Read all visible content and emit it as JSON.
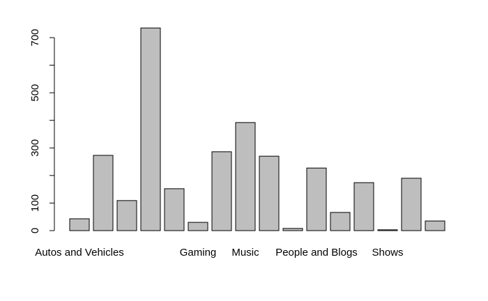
{
  "chart_data": {
    "type": "bar",
    "categories": [
      "Autos and Vehicles",
      null,
      null,
      null,
      null,
      "Gaming",
      null,
      "Music",
      null,
      null,
      "People and Blogs",
      null,
      null,
      "Shows",
      null,
      null
    ],
    "values": [
      43,
      273,
      109,
      735,
      152,
      30,
      286,
      392,
      270,
      8,
      227,
      66,
      174,
      3,
      190,
      35
    ],
    "color": "#bebebe",
    "ylim": [
      0,
      700
    ],
    "yticks": [
      0,
      100,
      {
        "value": 200,
        "label": null
      },
      300,
      {
        "value": 400,
        "label": null
      },
      500,
      {
        "value": 600,
        "label": null
      },
      700
    ],
    "grid": false
  }
}
